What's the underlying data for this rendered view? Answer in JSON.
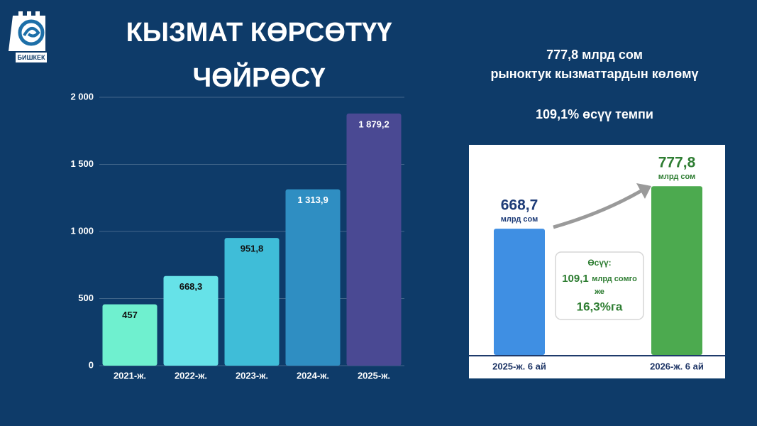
{
  "logo": "БИШКЕК",
  "chart_data": [
    {
      "type": "bar",
      "title": [
        "КЫЗМАТ КӨРСӨТҮҮ",
        "ЧӨЙРӨСҮ"
      ],
      "categories": [
        "2021-ж.",
        "2022-ж.",
        "2023-ж.",
        "2024-ж.",
        "2025-ж."
      ],
      "values": [
        457,
        668.3,
        951.8,
        1313.9,
        1879.2
      ],
      "value_labels": [
        "457",
        "668,3",
        "951,8",
        "1 313,9",
        "1 879,2"
      ],
      "colors": [
        "#6ff0cf",
        "#66e2e8",
        "#3fbdd8",
        "#2f8ec2",
        "#4a4993"
      ],
      "value_label_colors": [
        "#111111",
        "#111111",
        "#111111",
        "#ffffff",
        "#ffffff"
      ],
      "ylim": [
        0,
        2000
      ],
      "yticks": [
        0,
        500,
        {
          "value": 1000,
          "label": "1 000"
        },
        {
          "value": 1500,
          "label": "1 500"
        },
        {
          "value": 2000,
          "label": "2 000"
        }
      ],
      "grid": true
    },
    {
      "type": "bar",
      "title": [
        "777,8 млрд сом",
        "рыноктук кызматтардын көлөмү"
      ],
      "subtitle": "109,1% өсүү темпи",
      "categories": [
        "2025-ж. 6 ай",
        "2026-ж. 6 ай"
      ],
      "values": [
        668.7,
        777.8
      ],
      "value_labels": [
        "668,7",
        "777,8"
      ],
      "value_unit": "млрд сом",
      "colors": [
        "#3f8fe3",
        "#4caa4f"
      ],
      "value_label_colors": [
        "#1e3c78",
        "#2e7d32"
      ],
      "ylim": [
        345,
        800
      ],
      "grid": false,
      "annotation": [
        "Өсүү:",
        "109,1",
        "млрд сомго",
        "же",
        "16,3%га"
      ]
    }
  ]
}
